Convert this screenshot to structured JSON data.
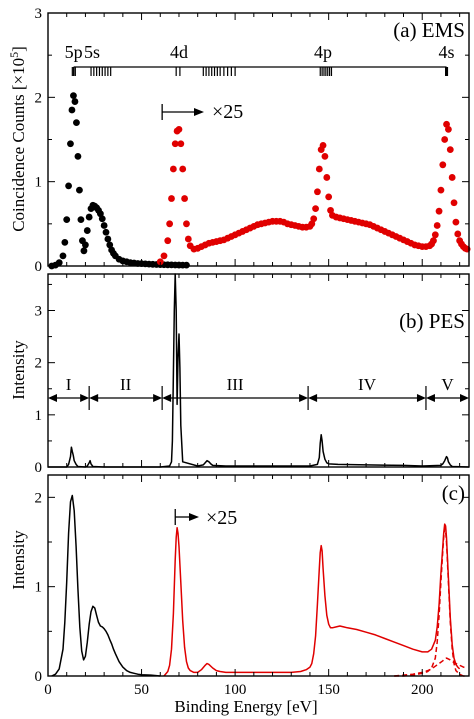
{
  "figure": {
    "xlabel": "Binding Energy [eV]",
    "x_ticks": [
      "0",
      "50",
      "100",
      "150",
      "200"
    ]
  },
  "chart_data": [
    {
      "type": "scatter",
      "panel_label": "(a) EMS",
      "ylabel": "Coincidence Counts [×10",
      "ylabel_sup": "5",
      "ylabel_close": "]",
      "xlim": [
        0,
        225
      ],
      "ylim": [
        0,
        3
      ],
      "y_ticks": [
        "0",
        "1",
        "2",
        "3"
      ],
      "arrow_label": "×25",
      "level_labels": [
        {
          "label": "5p",
          "x": 13.7
        },
        {
          "label": "5s",
          "x": 23.5
        },
        {
          "label": "4d",
          "x": 70
        },
        {
          "label": "4p",
          "x": 147
        },
        {
          "label": "4s",
          "x": 213
        }
      ],
      "tick_groups": [
        [
          13.0,
          13.8,
          14.6
        ],
        [
          23,
          24.5,
          26,
          27.5,
          29,
          30.5,
          32,
          33.5
        ],
        [
          68.5,
          70.5
        ],
        [
          83,
          84.5,
          86,
          87.5,
          89,
          90.5,
          92,
          94,
          96,
          98,
          100
        ],
        [
          145.5,
          146.5,
          147.5,
          148.5,
          149.5,
          150.5,
          151.5
        ],
        [
          212.5,
          213.5
        ]
      ],
      "series": [
        {
          "color": "#000000",
          "x": [
            2,
            4,
            6,
            8,
            9,
            10,
            11,
            12,
            12.8,
            13.6,
            14.4,
            15.2,
            16,
            16.8,
            17.6,
            18.4,
            19.2,
            20,
            21,
            22,
            23,
            24,
            25,
            26,
            27,
            28,
            29,
            30,
            31,
            32,
            33,
            34,
            35,
            36,
            38,
            40,
            42,
            44,
            46,
            48,
            50,
            52,
            54,
            56,
            58,
            60,
            62,
            64,
            66,
            68,
            70,
            72,
            74
          ],
          "y": [
            0.0,
            0.01,
            0.04,
            0.12,
            0.28,
            0.55,
            0.95,
            1.45,
            1.85,
            2.02,
            1.95,
            1.7,
            1.3,
            0.9,
            0.55,
            0.3,
            0.18,
            0.25,
            0.42,
            0.58,
            0.68,
            0.72,
            0.71,
            0.69,
            0.66,
            0.62,
            0.56,
            0.48,
            0.4,
            0.32,
            0.25,
            0.19,
            0.15,
            0.12,
            0.08,
            0.06,
            0.05,
            0.04,
            0.035,
            0.03,
            0.028,
            0.025,
            0.022,
            0.02,
            0.018,
            0.016,
            0.015,
            0.014,
            0.013,
            0.012,
            0.011,
            0.01,
            0.01
          ]
        },
        {
          "color": "#e00000",
          "x": [
            60,
            62,
            64,
            65,
            66,
            67,
            68,
            69,
            70,
            71,
            72,
            73,
            74,
            75,
            76,
            78,
            80,
            82,
            84,
            86,
            88,
            90,
            92,
            94,
            96,
            98,
            100,
            102,
            104,
            106,
            108,
            110,
            112,
            114,
            116,
            118,
            120,
            122,
            124,
            126,
            128,
            130,
            132,
            134,
            136,
            138,
            140,
            141,
            142,
            143,
            144,
            145,
            146,
            147,
            148,
            149,
            150,
            151,
            152,
            154,
            156,
            158,
            160,
            162,
            164,
            166,
            168,
            170,
            172,
            174,
            176,
            178,
            180,
            182,
            184,
            186,
            188,
            190,
            192,
            194,
            196,
            198,
            200,
            202,
            204,
            205,
            206,
            207,
            208,
            209,
            210,
            211,
            212,
            213,
            214,
            215,
            216,
            217,
            218,
            219,
            220,
            221,
            222,
            223,
            224
          ],
          "y": [
            0.05,
            0.12,
            0.3,
            0.5,
            0.8,
            1.15,
            1.45,
            1.6,
            1.62,
            1.45,
            1.15,
            0.8,
            0.5,
            0.32,
            0.24,
            0.2,
            0.21,
            0.23,
            0.25,
            0.27,
            0.28,
            0.29,
            0.3,
            0.31,
            0.33,
            0.35,
            0.37,
            0.39,
            0.41,
            0.43,
            0.45,
            0.47,
            0.49,
            0.5,
            0.51,
            0.52,
            0.53,
            0.53,
            0.53,
            0.52,
            0.5,
            0.49,
            0.48,
            0.47,
            0.46,
            0.46,
            0.47,
            0.5,
            0.56,
            0.68,
            0.88,
            1.15,
            1.38,
            1.43,
            1.3,
            1.05,
            0.82,
            0.66,
            0.6,
            0.58,
            0.57,
            0.56,
            0.55,
            0.54,
            0.53,
            0.52,
            0.51,
            0.5,
            0.49,
            0.47,
            0.45,
            0.43,
            0.41,
            0.39,
            0.37,
            0.35,
            0.33,
            0.31,
            0.29,
            0.27,
            0.25,
            0.24,
            0.23,
            0.23,
            0.24,
            0.26,
            0.3,
            0.37,
            0.48,
            0.65,
            0.9,
            1.2,
            1.5,
            1.68,
            1.62,
            1.38,
            1.05,
            0.75,
            0.52,
            0.38,
            0.3,
            0.26,
            0.23,
            0.21,
            0.2
          ]
        }
      ]
    },
    {
      "type": "line",
      "panel_label": "(b) PES",
      "ylabel": "Intensity",
      "xlim": [
        0,
        225
      ],
      "ylim": [
        0,
        3.7
      ],
      "y_ticks": [
        "0",
        "1",
        "2",
        "3"
      ],
      "regions": [
        {
          "label": "I",
          "from": 0,
          "to": 22
        },
        {
          "label": "II",
          "from": 22,
          "to": 61
        },
        {
          "label": "III",
          "from": 61,
          "to": 139
        },
        {
          "label": "IV",
          "from": 139,
          "to": 202
        },
        {
          "label": "V",
          "from": 202,
          "to": 225
        }
      ],
      "series": [
        {
          "color": "#000000",
          "x": [
            0,
            10,
            11,
            12,
            12.5,
            13,
            13.5,
            14,
            15,
            16,
            20,
            21,
            22,
            22.5,
            23,
            24,
            30,
            40,
            60,
            65,
            66,
            66.5,
            67,
            67.5,
            68,
            68.5,
            69,
            69.5,
            70,
            70.5,
            71,
            72,
            80,
            83,
            84,
            85,
            86,
            87,
            88,
            95,
            100,
            140,
            144,
            145,
            145.5,
            146,
            146.5,
            147,
            148,
            149,
            150,
            155,
            170,
            190,
            200,
            210,
            211,
            212,
            213,
            213.5,
            214,
            215,
            216,
            225
          ],
          "y": [
            0.0,
            0.0,
            0.05,
            0.2,
            0.38,
            0.3,
            0.22,
            0.12,
            0.05,
            0.01,
            0.0,
            0.02,
            0.08,
            0.12,
            0.06,
            0.01,
            0.0,
            0.0,
            0.0,
            0.02,
            0.1,
            0.5,
            1.8,
            3.0,
            3.7,
            3.0,
            1.2,
            2.1,
            2.55,
            1.9,
            0.8,
            0.1,
            0.02,
            0.04,
            0.08,
            0.12,
            0.1,
            0.06,
            0.03,
            0.02,
            0.02,
            0.02,
            0.05,
            0.18,
            0.45,
            0.62,
            0.5,
            0.3,
            0.15,
            0.08,
            0.06,
            0.05,
            0.04,
            0.03,
            0.02,
            0.03,
            0.06,
            0.12,
            0.2,
            0.17,
            0.1,
            0.04,
            0.01,
            0.0
          ]
        }
      ]
    },
    {
      "type": "line",
      "panel_label": "(c)",
      "ylabel": "Intensity",
      "xlim": [
        0,
        225
      ],
      "ylim": [
        0,
        2.25
      ],
      "y_ticks": [
        "0",
        "1",
        "2"
      ],
      "arrow_label": "×25",
      "series": [
        {
          "color": "#000000",
          "dash": false,
          "x": [
            2,
            4,
            6,
            8,
            9,
            10,
            11,
            12,
            13,
            14,
            15,
            16,
            17,
            18,
            19,
            20,
            21,
            22,
            23,
            24,
            25,
            26,
            27,
            28,
            29,
            30,
            31,
            32,
            33,
            34,
            35,
            36,
            38,
            40,
            42,
            44,
            46,
            48,
            50,
            55,
            60
          ],
          "y": [
            0.0,
            0.02,
            0.08,
            0.3,
            0.6,
            1.05,
            1.6,
            1.95,
            2.02,
            1.85,
            1.45,
            0.98,
            0.55,
            0.28,
            0.18,
            0.22,
            0.38,
            0.58,
            0.72,
            0.78,
            0.76,
            0.68,
            0.6,
            0.56,
            0.55,
            0.53,
            0.5,
            0.46,
            0.41,
            0.36,
            0.3,
            0.25,
            0.16,
            0.1,
            0.06,
            0.04,
            0.03,
            0.02,
            0.015,
            0.01,
            0.0
          ]
        },
        {
          "color": "#e00000",
          "dash": false,
          "x": [
            62,
            64,
            65,
            66,
            67,
            68,
            68.5,
            69,
            69.5,
            70,
            71,
            72,
            73,
            74,
            75,
            76,
            78,
            80,
            82,
            84,
            85,
            86,
            88,
            90,
            92,
            95,
            100,
            110,
            120,
            130,
            135,
            138,
            140,
            141,
            142,
            143,
            144,
            145,
            145.5,
            146,
            146.5,
            147,
            148,
            149,
            150,
            151,
            152,
            154,
            156,
            158,
            160,
            165,
            170,
            175,
            180,
            185,
            190,
            195,
            200,
            203,
            205,
            207,
            208,
            209,
            210,
            211,
            211.5,
            212,
            212.5,
            213,
            214,
            215,
            216,
            217,
            218,
            219,
            220
          ],
          "y": [
            0.0,
            0.05,
            0.12,
            0.3,
            0.7,
            1.3,
            1.55,
            1.66,
            1.6,
            1.45,
            1.05,
            0.62,
            0.32,
            0.16,
            0.09,
            0.06,
            0.04,
            0.04,
            0.07,
            0.12,
            0.14,
            0.13,
            0.09,
            0.06,
            0.05,
            0.04,
            0.04,
            0.04,
            0.04,
            0.04,
            0.05,
            0.07,
            0.1,
            0.14,
            0.25,
            0.45,
            0.8,
            1.2,
            1.38,
            1.46,
            1.4,
            1.2,
            0.9,
            0.68,
            0.58,
            0.54,
            0.54,
            0.55,
            0.56,
            0.55,
            0.54,
            0.52,
            0.49,
            0.46,
            0.42,
            0.38,
            0.34,
            0.3,
            0.27,
            0.27,
            0.3,
            0.4,
            0.55,
            0.8,
            1.15,
            1.45,
            1.6,
            1.7,
            1.68,
            1.55,
            1.1,
            0.65,
            0.35,
            0.2,
            0.13,
            0.1,
            0.08
          ]
        },
        {
          "color": "#e00000",
          "dash": true,
          "x": [
            185,
            190,
            195,
            200,
            203,
            205,
            207,
            208,
            209,
            210,
            211,
            211.5,
            212,
            212.5,
            213,
            214,
            215,
            216,
            217,
            218,
            220,
            222,
            224
          ],
          "y": [
            0.0,
            0.0,
            0.01,
            0.03,
            0.05,
            0.09,
            0.2,
            0.38,
            0.68,
            1.05,
            1.4,
            1.55,
            1.65,
            1.62,
            1.5,
            1.05,
            0.6,
            0.3,
            0.14,
            0.06,
            0.02,
            0.0,
            0.0
          ]
        },
        {
          "color": "#e00000",
          "dash": true,
          "x": [
            185,
            190,
            195,
            200,
            203,
            205,
            207,
            209,
            211,
            212,
            213,
            215,
            217,
            219,
            222,
            224
          ],
          "y": [
            0.0,
            0.01,
            0.02,
            0.04,
            0.06,
            0.08,
            0.11,
            0.14,
            0.17,
            0.19,
            0.2,
            0.18,
            0.15,
            0.13,
            0.1,
            0.09
          ]
        }
      ]
    }
  ]
}
